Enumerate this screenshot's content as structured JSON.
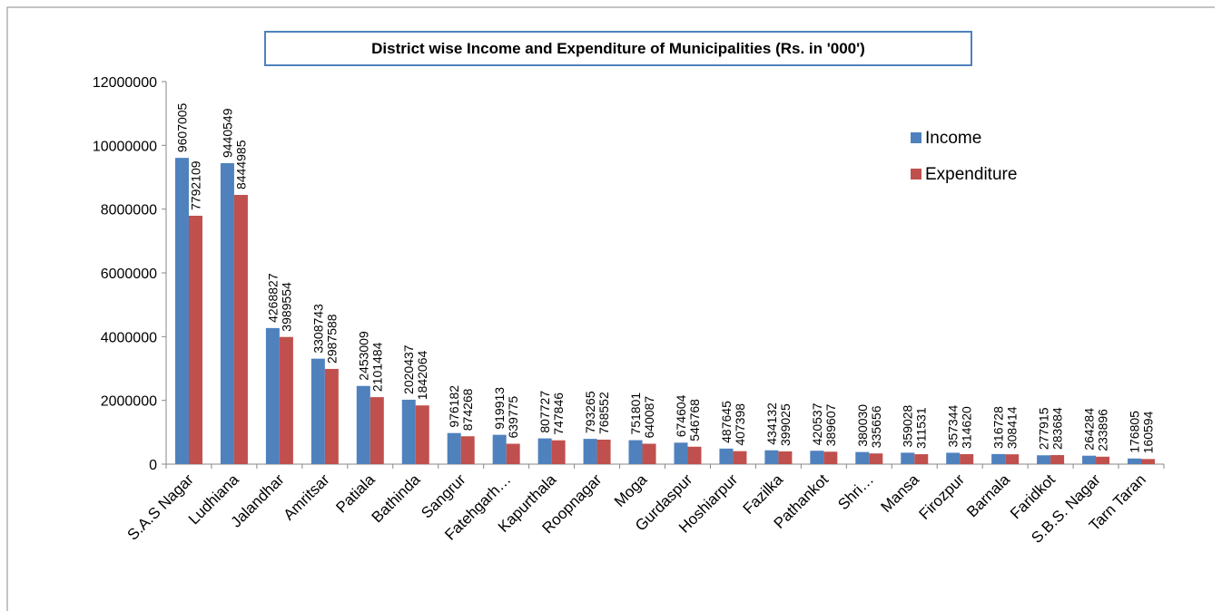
{
  "chart_data": {
    "type": "bar",
    "title": "District wise Income and Expenditure of Municipalities   (Rs. in '000')",
    "categories": [
      "S.A.S Nagar",
      "Ludhiana",
      "Jalandhar",
      "Amritsar",
      "Patiala",
      "Bathinda",
      "Sangrur",
      "Fatehgarh…",
      "Kapurthala",
      "Roopnagar",
      "Moga",
      "Gurdaspur",
      "Hoshiarpur",
      "Fazilka",
      "Pathankot",
      "Shri…",
      "Mansa",
      "Firozpur",
      "Barnala",
      "Faridkot",
      "S.B.S. Nagar",
      "Tarn Taran"
    ],
    "series": [
      {
        "name": "Income",
        "color": "#4f81bd",
        "values": [
          9607005,
          9440549,
          4268827,
          3308743,
          2453009,
          2020437,
          976182,
          919913,
          807727,
          793265,
          751801,
          674604,
          487645,
          434132,
          420537,
          380030,
          359028,
          357344,
          316728,
          277915,
          264284,
          176805
        ]
      },
      {
        "name": "Expenditure",
        "color": "#c0504d",
        "values": [
          7792109,
          8444985,
          3989554,
          2987588,
          2101484,
          1842064,
          874268,
          639775,
          747846,
          768552,
          640087,
          546768,
          407398,
          399025,
          389607,
          335656,
          311531,
          314620,
          308414,
          283684,
          233896,
          160594
        ]
      }
    ],
    "ylim": [
      0,
      12000000
    ],
    "yticks": [
      0,
      2000000,
      4000000,
      6000000,
      8000000,
      10000000,
      12000000
    ],
    "legend": "upper right"
  }
}
